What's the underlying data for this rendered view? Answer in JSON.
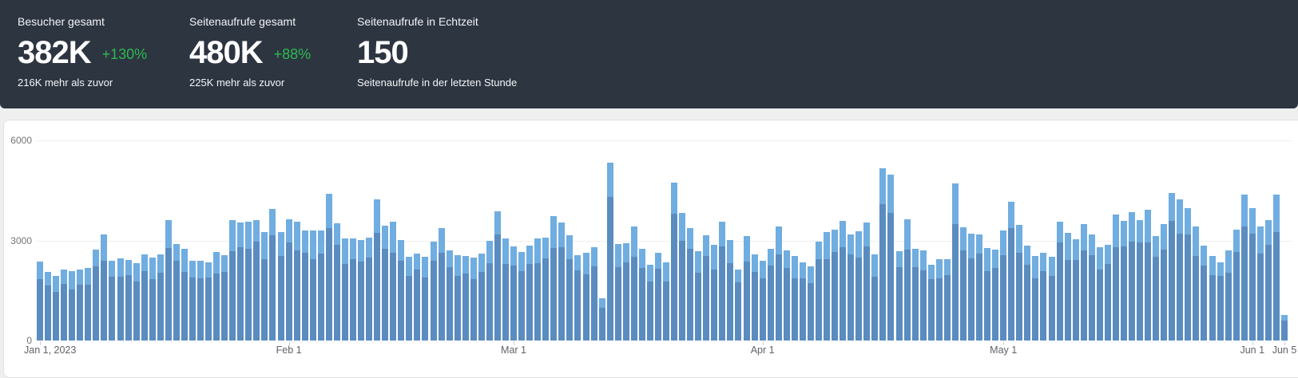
{
  "stats": [
    {
      "label": "Besucher gesamt",
      "value": "382K",
      "change": "+130%",
      "subtitle": "216K mehr als zuvor"
    },
    {
      "label": "Seitenaufrufe gesamt",
      "value": "480K",
      "change": "+88%",
      "subtitle": "225K mehr als zuvor"
    },
    {
      "label": "Seitenaufrufe in Echtzeit",
      "value": "150",
      "change": "",
      "subtitle": "Seitenaufrufe in der letzten Stunde"
    }
  ],
  "colors": {
    "header_background": "#2d3541",
    "positive_change_green": "#2eb94f",
    "bar_pageviews_blue": "#70ade0",
    "bar_visitors_blue": "#5a8cc0",
    "card_background": "#ffffff",
    "page_background": "#efefef",
    "gridline": "#efefef",
    "axis_text": "#757575"
  },
  "chart_data": {
    "type": "bar",
    "title": "",
    "xlabel": "",
    "ylabel": "",
    "x_unit": "day",
    "date_range": [
      "Jan 1, 2023",
      "Jun 5, 2023"
    ],
    "ylim": [
      0,
      6000
    ],
    "yticks": [
      0,
      3000,
      6000
    ],
    "grid": "horizontal",
    "legend_position": "none",
    "x_ticks": [
      {
        "index": 0,
        "label": "Jan 1, 2023",
        "align": "left"
      },
      {
        "index": 31,
        "label": "Feb 1",
        "align": "center"
      },
      {
        "index": 59,
        "label": "Mar 1",
        "align": "center"
      },
      {
        "index": 90,
        "label": "Apr 1",
        "align": "center"
      },
      {
        "index": 120,
        "label": "May 1",
        "align": "center"
      },
      {
        "index": 151,
        "label": "Jun 1",
        "align": "center"
      },
      {
        "index": 155,
        "label": "Jun 5",
        "align": "center"
      }
    ],
    "series": [
      {
        "name": "Seitenaufrufe",
        "color": "#70ade0",
        "values": [
          2360,
          2050,
          1930,
          2120,
          2070,
          2130,
          2170,
          2720,
          3180,
          2390,
          2460,
          2420,
          2310,
          2590,
          2490,
          2580,
          3610,
          2900,
          2750,
          2380,
          2400,
          2340,
          2650,
          2560,
          3620,
          3550,
          3560,
          3620,
          3240,
          3940,
          3260,
          3640,
          3560,
          3300,
          3300,
          3300,
          4390,
          3510,
          3060,
          3060,
          3020,
          3080,
          4240,
          3450,
          3570,
          3020,
          2510,
          2600,
          2510,
          2970,
          3370,
          2700,
          2550,
          2530,
          2490,
          2600,
          3000,
          3880,
          3050,
          2810,
          2650,
          2840,
          3050,
          3080,
          3740,
          3530,
          3160,
          2560,
          2640,
          2790,
          1260,
          5320,
          2900,
          2920,
          3410,
          2750,
          2280,
          2630,
          2350,
          4740,
          3820,
          3380,
          2670,
          3160,
          2870,
          3570,
          3020,
          2130,
          3140,
          2580,
          2400,
          2760,
          3410,
          2710,
          2530,
          2350,
          2230,
          2970,
          3240,
          3320,
          3580,
          3180,
          3280,
          3540,
          2590,
          5170,
          4970,
          2670,
          3640,
          2750,
          2700,
          2280,
          2450,
          2450,
          4710,
          3400,
          3200,
          3180,
          2770,
          2730,
          3300,
          4150,
          3460,
          2850,
          2530,
          2630,
          2510,
          3570,
          3220,
          3030,
          3480,
          3170,
          2790,
          2880,
          3770,
          3580,
          3840,
          3600,
          3910,
          3140,
          3500,
          4420,
          4220,
          3980,
          3420,
          2850,
          2530,
          2350,
          2700,
          3320,
          4380,
          3960,
          3420,
          3600,
          4380,
          760
        ]
      },
      {
        "name": "Besucher",
        "color": "#5a8cc0",
        "values": [
          1840,
          1660,
          1470,
          1700,
          1530,
          1680,
          1670,
          2230,
          2390,
          1910,
          1920,
          1960,
          1760,
          2070,
          1840,
          2040,
          2780,
          2380,
          2060,
          1900,
          1870,
          1900,
          2010,
          2050,
          2680,
          2800,
          2740,
          2970,
          2430,
          3150,
          2540,
          2950,
          2710,
          2640,
          2440,
          2610,
          3380,
          2880,
          2300,
          2450,
          2360,
          2490,
          3220,
          2760,
          2640,
          2390,
          1930,
          2130,
          1880,
          2380,
          2630,
          2190,
          1940,
          2020,
          1840,
          2050,
          2310,
          3180,
          2290,
          2250,
          2070,
          2300,
          2320,
          2460,
          2770,
          2790,
          2430,
          2100,
          1980,
          2230,
          980,
          4310,
          2200,
          2340,
          2520,
          2170,
          1760,
          2160,
          1760,
          3790,
          2980,
          2740,
          2030,
          2530,
          2120,
          2820,
          2330,
          1750,
          2360,
          2060,
          1870,
          2240,
          2590,
          2170,
          1870,
          1860,
          1720,
          2440,
          2430,
          2660,
          2790,
          2580,
          2490,
          2830,
          1920,
          4080,
          3830,
          2190,
          2730,
          2200,
          2110,
          1850,
          1860,
          1960,
          3490,
          2690,
          2460,
          2610,
          2080,
          2180,
          2570,
          3360,
          2630,
          2280,
          1870,
          2080,
          1930,
          2930,
          2420,
          2420,
          2710,
          2570,
          2120,
          2300,
          2790,
          2830,
          2960,
          2950,
          2930,
          2510,
          2730,
          3580,
          3210,
          3180,
          2530,
          2250,
          1950,
          1930,
          2030,
          2660,
          3420,
          3210,
          2600,
          2880,
          3240,
          600
        ]
      }
    ]
  }
}
